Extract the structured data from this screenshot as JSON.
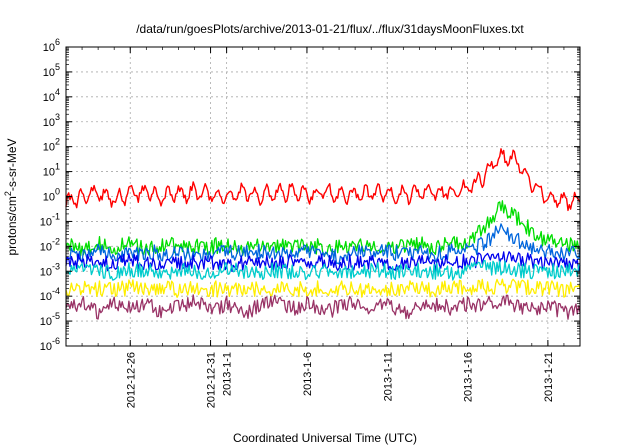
{
  "chart_data": {
    "type": "line",
    "title": "/data/run/goesPlots/archive/2013-01-21/flux/../flux/31daysMoonFluxes.txt",
    "xlabel": "Coordinated Universal Time (UTC)",
    "ylabel_prefix": "protons/cm",
    "ylabel_exp": "2",
    "ylabel_suffix": "-s-sr-MeV",
    "yscale": "log",
    "ylim": [
      1e-06,
      1000000.0
    ],
    "xlim": [
      "2012-12-22",
      "2013-01-23"
    ],
    "y_ticks": [
      {
        "value": 1e-06,
        "base": "10",
        "exp": "-6"
      },
      {
        "value": 1e-05,
        "base": "10",
        "exp": "-5"
      },
      {
        "value": 0.0001,
        "base": "10",
        "exp": "-4"
      },
      {
        "value": 0.001,
        "base": "10",
        "exp": "-3"
      },
      {
        "value": 0.01,
        "base": "10",
        "exp": "-2"
      },
      {
        "value": 0.1,
        "base": "10",
        "exp": "-1"
      },
      {
        "value": 1,
        "base": "10",
        "exp": "0"
      },
      {
        "value": 10,
        "base": "10",
        "exp": "1"
      },
      {
        "value": 100,
        "base": "10",
        "exp": "2"
      },
      {
        "value": 1000,
        "base": "10",
        "exp": "3"
      },
      {
        "value": 10000,
        "base": "10",
        "exp": "4"
      },
      {
        "value": 100000,
        "base": "10",
        "exp": "5"
      },
      {
        "value": 1000000,
        "base": "10",
        "exp": "6"
      }
    ],
    "x_ticks": [
      {
        "date": "2012-12-26",
        "label": "2012-12-26"
      },
      {
        "date": "2012-12-31",
        "label": "2012-12-31"
      },
      {
        "date": "2013-01-01",
        "label": "2013-1-1"
      },
      {
        "date": "2013-01-06",
        "label": "2013-1-6"
      },
      {
        "date": "2013-01-11",
        "label": "2013-1-11"
      },
      {
        "date": "2013-01-16",
        "label": "2013-1-16"
      },
      {
        "date": "2013-01-21",
        "label": "2013-1-21"
      }
    ],
    "grid": true,
    "series": [
      {
        "color": "#ff0000",
        "points": [
          [
            "2012-12-22",
            0.5
          ],
          [
            "2012-12-23",
            1.0
          ],
          [
            "2012-12-24",
            1.5
          ],
          [
            "2012-12-25",
            0.8
          ],
          [
            "2012-12-26",
            1.2
          ],
          [
            "2012-12-27",
            1.5
          ],
          [
            "2012-12-28",
            1.0
          ],
          [
            "2012-12-29",
            1.3
          ],
          [
            "2012-12-30",
            1.5
          ],
          [
            "2012-12-31",
            1.2
          ],
          [
            "2013-01-01",
            1.0
          ],
          [
            "2013-01-02",
            1.4
          ],
          [
            "2013-01-03",
            1.1
          ],
          [
            "2013-01-04",
            1.3
          ],
          [
            "2013-01-05",
            1.5
          ],
          [
            "2013-01-06",
            1.2
          ],
          [
            "2013-01-07",
            1.4
          ],
          [
            "2013-01-08",
            1.3
          ],
          [
            "2013-01-09",
            1.2
          ],
          [
            "2013-01-10",
            1.4
          ],
          [
            "2013-01-11",
            1.3
          ],
          [
            "2013-01-12",
            1.2
          ],
          [
            "2013-01-13",
            1.4
          ],
          [
            "2013-01-14",
            1.5
          ],
          [
            "2013-01-15",
            1.5
          ],
          [
            "2013-01-16",
            2.0
          ],
          [
            "2013-01-17",
            6.0
          ],
          [
            "2013-01-18",
            40
          ],
          [
            "2013-01-19",
            30
          ],
          [
            "2013-01-20",
            3.0
          ],
          [
            "2013-01-21",
            1.0
          ],
          [
            "2013-01-22",
            0.6
          ],
          [
            "2013-01-23",
            0.7
          ]
        ]
      },
      {
        "color": "#00dd00",
        "points": [
          [
            "2012-12-22",
            0.012
          ],
          [
            "2012-12-23",
            0.008
          ],
          [
            "2012-12-24",
            0.012
          ],
          [
            "2012-12-25",
            0.009
          ],
          [
            "2012-12-26",
            0.012
          ],
          [
            "2012-12-27",
            0.008
          ],
          [
            "2012-12-28",
            0.012
          ],
          [
            "2012-12-29",
            0.01
          ],
          [
            "2012-12-30",
            0.011
          ],
          [
            "2012-12-31",
            0.01
          ],
          [
            "2013-01-01",
            0.012
          ],
          [
            "2013-01-02",
            0.009
          ],
          [
            "2013-01-03",
            0.012
          ],
          [
            "2013-01-04",
            0.01
          ],
          [
            "2013-01-05",
            0.011
          ],
          [
            "2013-01-06",
            0.012
          ],
          [
            "2013-01-07",
            0.009
          ],
          [
            "2013-01-08",
            0.011
          ],
          [
            "2013-01-09",
            0.01
          ],
          [
            "2013-01-10",
            0.012
          ],
          [
            "2013-01-11",
            0.01
          ],
          [
            "2013-01-12",
            0.011
          ],
          [
            "2013-01-13",
            0.012
          ],
          [
            "2013-01-14",
            0.01
          ],
          [
            "2013-01-15",
            0.012
          ],
          [
            "2013-01-16",
            0.015
          ],
          [
            "2013-01-17",
            0.05
          ],
          [
            "2013-01-18",
            0.4
          ],
          [
            "2013-01-19",
            0.15
          ],
          [
            "2013-01-20",
            0.04
          ],
          [
            "2013-01-21",
            0.015
          ],
          [
            "2013-01-22",
            0.012
          ],
          [
            "2013-01-23",
            0.01
          ]
        ]
      },
      {
        "color": "#0066dd",
        "points": [
          [
            "2012-12-22",
            0.005
          ],
          [
            "2012-12-23",
            0.004
          ],
          [
            "2012-12-24",
            0.006
          ],
          [
            "2012-12-25",
            0.005
          ],
          [
            "2012-12-26",
            0.004
          ],
          [
            "2012-12-27",
            0.006
          ],
          [
            "2012-12-28",
            0.005
          ],
          [
            "2012-12-29",
            0.006
          ],
          [
            "2012-12-30",
            0.005
          ],
          [
            "2012-12-31",
            0.004
          ],
          [
            "2013-01-01",
            0.006
          ],
          [
            "2013-01-02",
            0.005
          ],
          [
            "2013-01-03",
            0.006
          ],
          [
            "2013-01-04",
            0.005
          ],
          [
            "2013-01-05",
            0.005
          ],
          [
            "2013-01-06",
            0.006
          ],
          [
            "2013-01-07",
            0.005
          ],
          [
            "2013-01-08",
            0.004
          ],
          [
            "2013-01-09",
            0.006
          ],
          [
            "2013-01-10",
            0.005
          ],
          [
            "2013-01-11",
            0.006
          ],
          [
            "2013-01-12",
            0.005
          ],
          [
            "2013-01-13",
            0.006
          ],
          [
            "2013-01-14",
            0.005
          ],
          [
            "2013-01-15",
            0.006
          ],
          [
            "2013-01-16",
            0.007
          ],
          [
            "2013-01-17",
            0.012
          ],
          [
            "2013-01-18",
            0.05
          ],
          [
            "2013-01-19",
            0.02
          ],
          [
            "2013-01-20",
            0.008
          ],
          [
            "2013-01-21",
            0.006
          ],
          [
            "2013-01-22",
            0.005
          ],
          [
            "2013-01-23",
            0.005
          ]
        ]
      },
      {
        "color": "#0000ee",
        "points": [
          [
            "2012-12-22",
            0.002
          ],
          [
            "2012-12-23",
            0.0025
          ],
          [
            "2012-12-24",
            0.0018
          ],
          [
            "2012-12-25",
            0.0022
          ],
          [
            "2012-12-26",
            0.0025
          ],
          [
            "2012-12-27",
            0.002
          ],
          [
            "2012-12-28",
            0.0023
          ],
          [
            "2012-12-29",
            0.0019
          ],
          [
            "2012-12-30",
            0.0022
          ],
          [
            "2012-12-31",
            0.0025
          ],
          [
            "2013-01-01",
            0.002
          ],
          [
            "2013-01-02",
            0.0022
          ],
          [
            "2013-01-03",
            0.0024
          ],
          [
            "2013-01-04",
            0.002
          ],
          [
            "2013-01-05",
            0.0023
          ],
          [
            "2013-01-06",
            0.0021
          ],
          [
            "2013-01-07",
            0.0024
          ],
          [
            "2013-01-08",
            0.002
          ],
          [
            "2013-01-09",
            0.0023
          ],
          [
            "2013-01-10",
            0.0022
          ],
          [
            "2013-01-11",
            0.002
          ],
          [
            "2013-01-12",
            0.0024
          ],
          [
            "2013-01-13",
            0.0022
          ],
          [
            "2013-01-14",
            0.0021
          ],
          [
            "2013-01-15",
            0.0023
          ],
          [
            "2013-01-16",
            0.0025
          ],
          [
            "2013-01-17",
            0.003
          ],
          [
            "2013-01-18",
            0.0035
          ],
          [
            "2013-01-19",
            0.003
          ],
          [
            "2013-01-20",
            0.0025
          ],
          [
            "2013-01-21",
            0.0022
          ],
          [
            "2013-01-22",
            0.002
          ],
          [
            "2013-01-23",
            0.0021
          ]
        ]
      },
      {
        "color": "#00cccc",
        "points": [
          [
            "2012-12-22",
            0.0009
          ],
          [
            "2012-12-23",
            0.0011
          ],
          [
            "2012-12-24",
            0.001
          ],
          [
            "2012-12-25",
            0.0009
          ],
          [
            "2012-12-26",
            0.0011
          ],
          [
            "2012-12-27",
            0.001
          ],
          [
            "2012-12-28",
            0.0009
          ],
          [
            "2012-12-29",
            0.0011
          ],
          [
            "2012-12-30",
            0.001
          ],
          [
            "2012-12-31",
            0.0009
          ],
          [
            "2013-01-01",
            0.0011
          ],
          [
            "2013-01-02",
            0.001
          ],
          [
            "2013-01-03",
            0.0009
          ],
          [
            "2013-01-04",
            0.0011
          ],
          [
            "2013-01-05",
            0.001
          ],
          [
            "2013-01-06",
            0.0009
          ],
          [
            "2013-01-07",
            0.0011
          ],
          [
            "2013-01-08",
            0.001
          ],
          [
            "2013-01-09",
            0.0009
          ],
          [
            "2013-01-10",
            0.0011
          ],
          [
            "2013-01-11",
            0.001
          ],
          [
            "2013-01-12",
            0.0009
          ],
          [
            "2013-01-13",
            0.0011
          ],
          [
            "2013-01-14",
            0.001
          ],
          [
            "2013-01-15",
            0.0009
          ],
          [
            "2013-01-16",
            0.0011
          ],
          [
            "2013-01-17",
            0.0013
          ],
          [
            "2013-01-18",
            0.0015
          ],
          [
            "2013-01-19",
            0.0012
          ],
          [
            "2013-01-20",
            0.001
          ],
          [
            "2013-01-21",
            0.0009
          ],
          [
            "2013-01-22",
            0.0011
          ],
          [
            "2013-01-23",
            0.001
          ]
        ]
      },
      {
        "color": "#ffee00",
        "points": [
          [
            "2012-12-22",
            0.00018
          ],
          [
            "2012-12-23",
            0.00022
          ],
          [
            "2012-12-24",
            0.0002
          ],
          [
            "2012-12-25",
            0.00017
          ],
          [
            "2012-12-26",
            0.00023
          ],
          [
            "2012-12-27",
            0.00019
          ],
          [
            "2012-12-28",
            0.00021
          ],
          [
            "2012-12-29",
            0.00018
          ],
          [
            "2012-12-30",
            0.00022
          ],
          [
            "2012-12-31",
            0.0002
          ],
          [
            "2013-01-01",
            0.00019
          ],
          [
            "2013-01-02",
            0.00022
          ],
          [
            "2013-01-03",
            0.00018
          ],
          [
            "2013-01-04",
            0.00021
          ],
          [
            "2013-01-05",
            0.0002
          ],
          [
            "2013-01-06",
            0.00019
          ],
          [
            "2013-01-07",
            0.00022
          ],
          [
            "2013-01-08",
            0.0002
          ],
          [
            "2013-01-09",
            0.00018
          ],
          [
            "2013-01-10",
            0.00021
          ],
          [
            "2013-01-11",
            0.0002
          ],
          [
            "2013-01-12",
            0.00022
          ],
          [
            "2013-01-13",
            0.00019
          ],
          [
            "2013-01-14",
            0.0002
          ],
          [
            "2013-01-15",
            0.00021
          ],
          [
            "2013-01-16",
            0.00022
          ],
          [
            "2013-01-17",
            0.00024
          ],
          [
            "2013-01-18",
            0.00026
          ],
          [
            "2013-01-19",
            0.00023
          ],
          [
            "2013-01-20",
            0.00021
          ],
          [
            "2013-01-21",
            0.0002
          ],
          [
            "2013-01-22",
            0.00019
          ],
          [
            "2013-01-23",
            0.0002
          ]
        ]
      },
      {
        "color": "#993366",
        "points": [
          [
            "2012-12-22",
            3e-05
          ],
          [
            "2012-12-23",
            5e-05
          ],
          [
            "2012-12-24",
            2e-05
          ],
          [
            "2012-12-25",
            6e-05
          ],
          [
            "2012-12-26",
            3e-05
          ],
          [
            "2012-12-27",
            5e-05
          ],
          [
            "2012-12-28",
            2e-05
          ],
          [
            "2012-12-29",
            4e-05
          ],
          [
            "2012-12-30",
            6e-05
          ],
          [
            "2012-12-31",
            3e-05
          ],
          [
            "2013-01-01",
            5e-05
          ],
          [
            "2013-01-02",
            2e-05
          ],
          [
            "2013-01-03",
            4e-05
          ],
          [
            "2013-01-04",
            6e-05
          ],
          [
            "2013-01-05",
            3e-05
          ],
          [
            "2013-01-06",
            5e-05
          ],
          [
            "2013-01-07",
            2e-05
          ],
          [
            "2013-01-08",
            4e-05
          ],
          [
            "2013-01-09",
            5e-05
          ],
          [
            "2013-01-10",
            3e-05
          ],
          [
            "2013-01-11",
            6e-05
          ],
          [
            "2013-01-12",
            2e-05
          ],
          [
            "2013-01-13",
            4e-05
          ],
          [
            "2013-01-14",
            5e-05
          ],
          [
            "2013-01-15",
            3e-05
          ],
          [
            "2013-01-16",
            5e-05
          ],
          [
            "2013-01-17",
            4e-05
          ],
          [
            "2013-01-18",
            7e-05
          ],
          [
            "2013-01-19",
            4e-05
          ],
          [
            "2013-01-20",
            3e-05
          ],
          [
            "2013-01-21",
            5e-05
          ],
          [
            "2013-01-22",
            2e-05
          ],
          [
            "2013-01-23",
            4e-05
          ]
        ]
      }
    ]
  }
}
